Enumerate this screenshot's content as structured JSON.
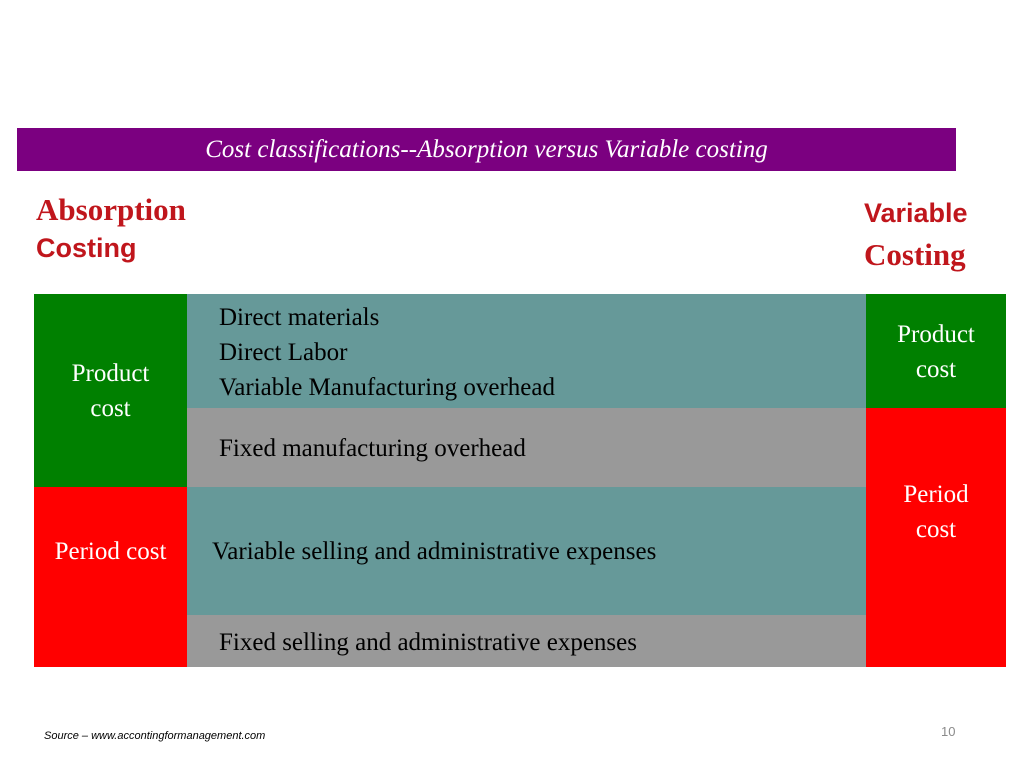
{
  "slide": {
    "title": "Cost classifications--Absorption versus Variable costing",
    "left_heading": {
      "line1": "Absorption",
      "line2": "Costing"
    },
    "right_heading": {
      "line1": "Variable",
      "line2": "Costing"
    },
    "absorption_column": {
      "product_cost": {
        "line1": "Product",
        "line2": "cost"
      },
      "period_cost": "Period cost"
    },
    "cost_items": {
      "direct_materials": "Direct materials",
      "direct_labor": "Direct Labor",
      "variable_manufacturing_overhead": "Variable Manufacturing overhead",
      "fixed_manufacturing_overhead": "Fixed manufacturing overhead",
      "variable_selling_admin": "Variable selling and administrative expenses",
      "fixed_selling_admin": "Fixed selling and administrative expenses"
    },
    "variable_column": {
      "product_cost": {
        "line1": "Product",
        "line2": "cost"
      },
      "period_cost": {
        "line1": "Period",
        "line2": "cost"
      }
    },
    "source": "Source – www.accontingformanagement.com",
    "page_number": "10",
    "colors": {
      "banner": "#7b0080",
      "product_cost": "#008000",
      "period_cost": "#ff0000",
      "variable_items": "#669999",
      "fixed_items": "#999999",
      "heading": "#c0161c"
    }
  }
}
